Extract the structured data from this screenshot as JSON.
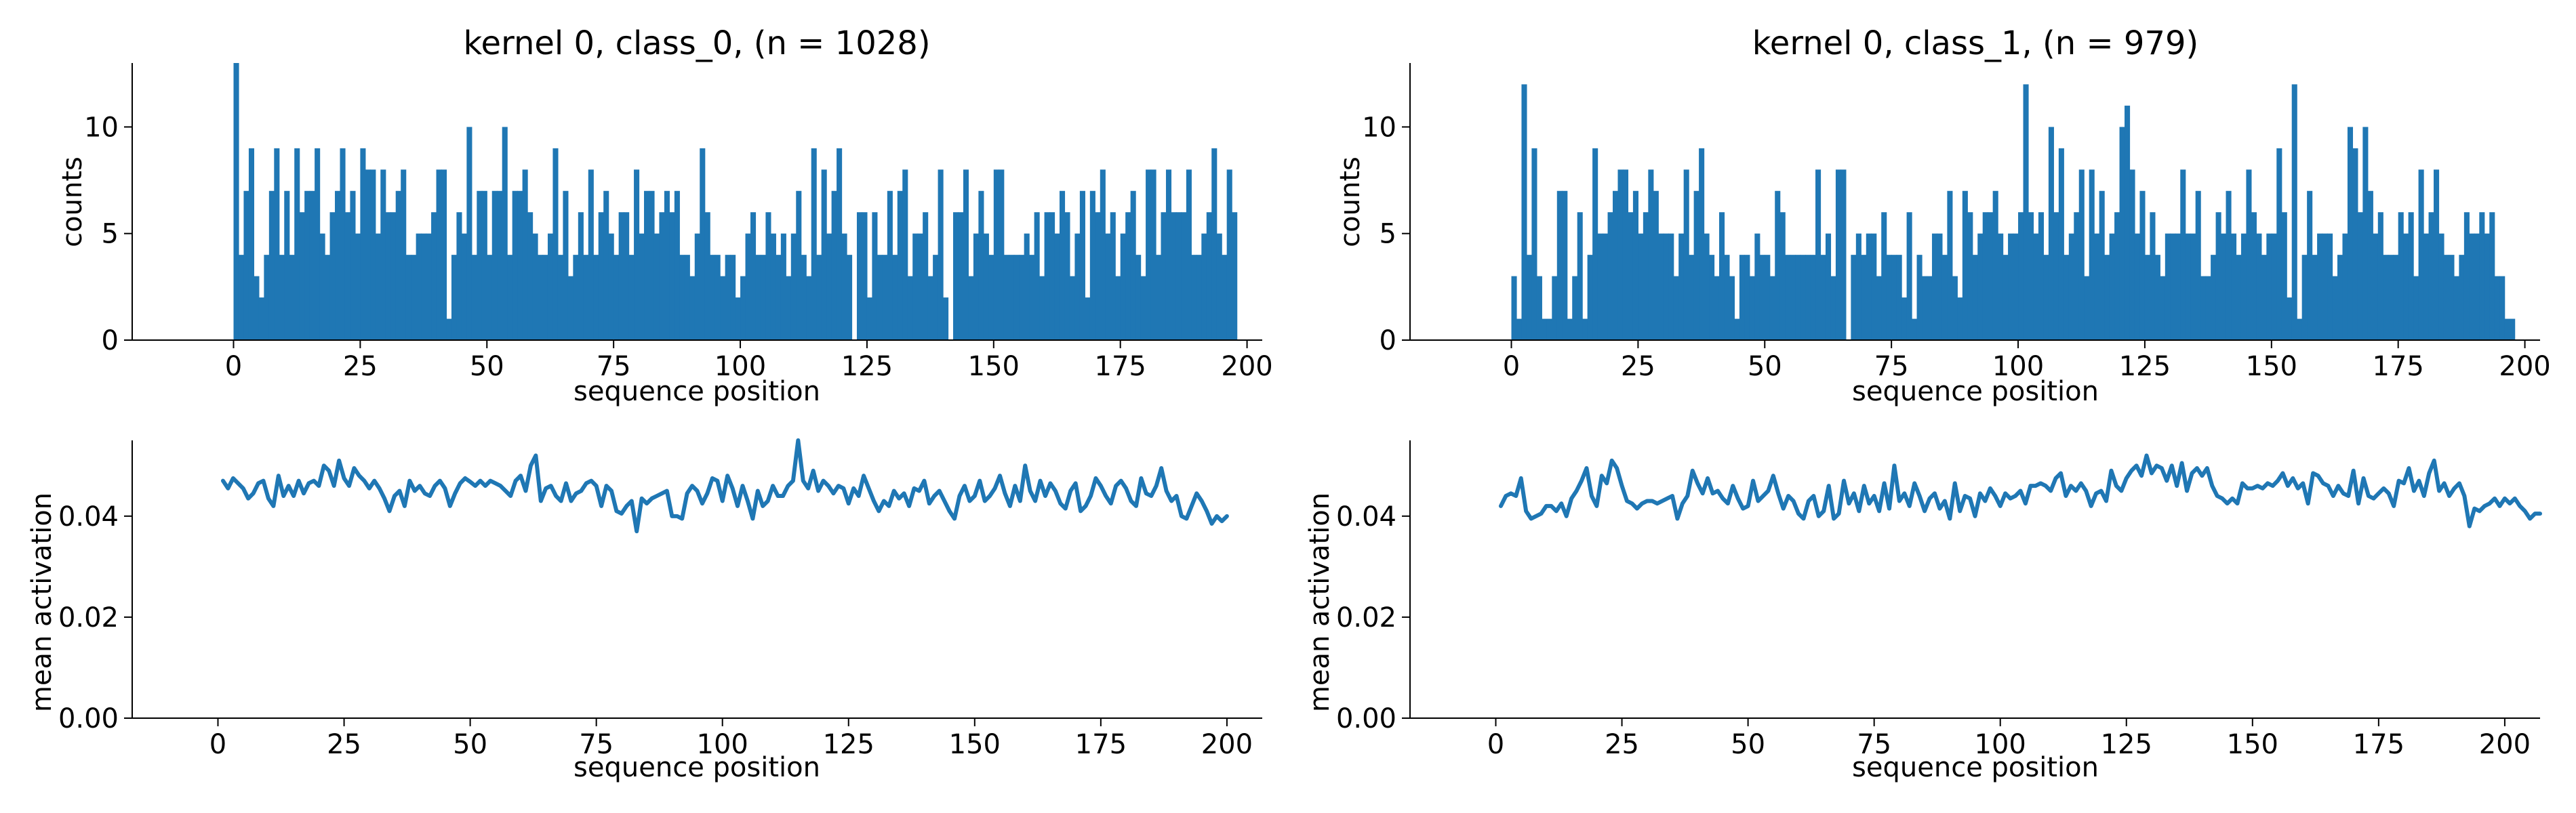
{
  "chart_data": [
    {
      "type": "bar",
      "title": "kernel 0, class_0, (n = 1028)",
      "xlabel": "sequence position",
      "ylabel": "counts",
      "xlim": [
        -20,
        203
      ],
      "ylim": [
        0,
        13
      ],
      "xticks": [
        "0",
        "25",
        "50",
        "75",
        "100",
        "125",
        "150",
        "175",
        "200"
      ],
      "yticks": [
        "0",
        "5",
        "10"
      ],
      "color": "#1f77b4",
      "x_start": 0,
      "values": [
        13,
        4,
        7,
        9,
        3,
        2,
        4,
        7,
        9,
        4,
        7,
        4,
        9,
        6,
        7,
        7,
        9,
        5,
        4,
        6,
        7,
        9,
        6,
        7,
        5,
        9,
        8,
        8,
        5,
        8,
        6,
        6,
        7,
        8,
        4,
        4,
        5,
        5,
        5,
        6,
        8,
        8,
        1,
        4,
        6,
        5,
        10,
        4,
        7,
        7,
        4,
        7,
        7,
        10,
        4,
        7,
        7,
        8,
        6,
        5,
        4,
        4,
        5,
        9,
        4,
        7,
        3,
        4,
        6,
        4,
        8,
        4,
        6,
        7,
        5,
        4,
        6,
        6,
        4,
        8,
        5,
        7,
        7,
        5,
        6,
        7,
        6,
        7,
        4,
        4,
        3,
        5,
        9,
        6,
        4,
        4,
        3,
        4,
        4,
        2,
        3,
        5,
        6,
        4,
        4,
        6,
        5,
        4,
        5,
        3,
        5,
        7,
        4,
        3,
        9,
        4,
        8,
        5,
        7,
        9,
        5,
        4,
        0,
        6,
        6,
        2,
        6,
        4,
        4,
        7,
        4,
        7,
        8,
        3,
        5,
        5,
        6,
        3,
        4,
        8,
        2,
        0,
        6,
        6,
        8,
        3,
        5,
        7,
        5,
        4,
        8,
        8,
        4,
        4,
        4,
        4,
        5,
        4,
        6,
        3,
        6,
        6,
        5,
        7,
        6,
        3,
        5,
        7,
        2,
        7,
        6,
        8,
        5,
        6,
        3,
        5,
        6,
        7,
        4,
        3,
        8,
        8,
        4,
        6,
        8,
        6,
        6,
        6,
        8,
        4,
        4,
        5,
        6,
        9,
        5,
        4,
        8,
        6
      ]
    },
    {
      "type": "line",
      "title": "",
      "xlabel": "sequence position",
      "ylabel": "mean activation",
      "xlim": [
        -17,
        207
      ],
      "ylim": [
        0,
        0.055
      ],
      "xticks": [
        "0",
        "25",
        "50",
        "75",
        "100",
        "125",
        "150",
        "175",
        "200"
      ],
      "yticks": [
        "0.00",
        "0.02",
        "0.04"
      ],
      "color": "#1f77b4",
      "x_start": 1,
      "values": [
        0.047,
        0.0455,
        0.0475,
        0.0465,
        0.0455,
        0.0435,
        0.0445,
        0.0465,
        0.047,
        0.0435,
        0.042,
        0.048,
        0.044,
        0.046,
        0.044,
        0.047,
        0.0445,
        0.0465,
        0.047,
        0.046,
        0.05,
        0.049,
        0.046,
        0.051,
        0.0475,
        0.046,
        0.0495,
        0.048,
        0.047,
        0.0455,
        0.047,
        0.0455,
        0.0435,
        0.041,
        0.044,
        0.045,
        0.042,
        0.047,
        0.045,
        0.046,
        0.0445,
        0.044,
        0.046,
        0.047,
        0.0455,
        0.042,
        0.0445,
        0.0465,
        0.0475,
        0.0468,
        0.046,
        0.047,
        0.046,
        0.047,
        0.0465,
        0.046,
        0.045,
        0.044,
        0.047,
        0.048,
        0.045,
        0.05,
        0.052,
        0.043,
        0.0455,
        0.046,
        0.044,
        0.043,
        0.0465,
        0.043,
        0.0445,
        0.045,
        0.0465,
        0.047,
        0.046,
        0.042,
        0.046,
        0.045,
        0.041,
        0.0405,
        0.042,
        0.043,
        0.037,
        0.0435,
        0.0425,
        0.0435,
        0.044,
        0.0445,
        0.045,
        0.04,
        0.04,
        0.0395,
        0.0445,
        0.046,
        0.045,
        0.0425,
        0.0445,
        0.0475,
        0.047,
        0.043,
        0.048,
        0.0455,
        0.042,
        0.046,
        0.043,
        0.0395,
        0.045,
        0.042,
        0.043,
        0.046,
        0.044,
        0.044,
        0.046,
        0.047,
        0.055,
        0.047,
        0.0455,
        0.049,
        0.045,
        0.047,
        0.046,
        0.0445,
        0.046,
        0.0455,
        0.0425,
        0.0455,
        0.044,
        0.048,
        0.0455,
        0.043,
        0.041,
        0.043,
        0.042,
        0.045,
        0.0435,
        0.0445,
        0.042,
        0.0455,
        0.045,
        0.047,
        0.0425,
        0.044,
        0.045,
        0.043,
        0.041,
        0.0395,
        0.044,
        0.046,
        0.043,
        0.044,
        0.047,
        0.043,
        0.044,
        0.0455,
        0.048,
        0.0445,
        0.042,
        0.046,
        0.043,
        0.05,
        0.045,
        0.043,
        0.047,
        0.044,
        0.0465,
        0.045,
        0.0425,
        0.0415,
        0.045,
        0.0465,
        0.041,
        0.042,
        0.044,
        0.0475,
        0.046,
        0.044,
        0.0425,
        0.046,
        0.047,
        0.0455,
        0.043,
        0.042,
        0.0475,
        0.0445,
        0.044,
        0.046,
        0.0495,
        0.045,
        0.043,
        0.044,
        0.04,
        0.0395,
        0.042,
        0.0445,
        0.043,
        0.041,
        0.0385,
        0.04,
        0.039,
        0.04
      ]
    },
    {
      "type": "bar",
      "title": "kernel 0, class_1, (n = 979)",
      "xlabel": "sequence position",
      "ylabel": "counts",
      "xlim": [
        -20,
        203
      ],
      "ylim": [
        0,
        13
      ],
      "xticks": [
        "0",
        "25",
        "50",
        "75",
        "100",
        "125",
        "150",
        "175",
        "200"
      ],
      "yticks": [
        "0",
        "5",
        "10"
      ],
      "color": "#1f77b4",
      "x_start": 0,
      "values": [
        3,
        1,
        12,
        4,
        9,
        3,
        1,
        1,
        3,
        7,
        7,
        1,
        3,
        6,
        1,
        4,
        9,
        5,
        5,
        6,
        7,
        8,
        8,
        6,
        7,
        5,
        6,
        8,
        7,
        5,
        5,
        5,
        3,
        5,
        8,
        4,
        7,
        9,
        5,
        4,
        3,
        6,
        4,
        3,
        1,
        4,
        4,
        3,
        5,
        4,
        4,
        3,
        7,
        6,
        4,
        4,
        4,
        4,
        4,
        4,
        8,
        4,
        5,
        3,
        8,
        8,
        0,
        4,
        5,
        4,
        5,
        5,
        3,
        6,
        4,
        4,
        4,
        2,
        6,
        1,
        4,
        3,
        3,
        5,
        5,
        4,
        7,
        3,
        2,
        7,
        6,
        4,
        5,
        6,
        6,
        7,
        5,
        4,
        5,
        5,
        6,
        12,
        6,
        5,
        6,
        4,
        10,
        6,
        9,
        4,
        5,
        6,
        8,
        3,
        8,
        5,
        7,
        4,
        5,
        6,
        10,
        11,
        8,
        5,
        7,
        4,
        6,
        4,
        3,
        5,
        5,
        5,
        8,
        5,
        5,
        7,
        3,
        3,
        4,
        6,
        5,
        7,
        5,
        4,
        5,
        8,
        6,
        5,
        4,
        5,
        5,
        9,
        6,
        2,
        12,
        1,
        4,
        7,
        4,
        5,
        5,
        5,
        3,
        4,
        5,
        10,
        9,
        6,
        10,
        7,
        5,
        6,
        4,
        4,
        4,
        6,
        5,
        6,
        3,
        8,
        5,
        6,
        8,
        5,
        4,
        4,
        3,
        4,
        6,
        5,
        5,
        6,
        5,
        6,
        3,
        3,
        1,
        1
      ]
    },
    {
      "type": "line",
      "title": "",
      "xlabel": "sequence position",
      "ylabel": "mean activation",
      "xlim": [
        -17,
        207
      ],
      "ylim": [
        0,
        0.055
      ],
      "xticks": [
        "0",
        "25",
        "50",
        "75",
        "100",
        "125",
        "150",
        "175",
        "200"
      ],
      "yticks": [
        "0.00",
        "0.02",
        "0.04"
      ],
      "color": "#1f77b4",
      "x_start": 1,
      "values": [
        0.042,
        0.044,
        0.0445,
        0.044,
        0.0475,
        0.041,
        0.0395,
        0.04,
        0.0405,
        0.042,
        0.042,
        0.041,
        0.0425,
        0.04,
        0.0435,
        0.045,
        0.047,
        0.0495,
        0.044,
        0.042,
        0.048,
        0.0465,
        0.051,
        0.0495,
        0.046,
        0.043,
        0.0425,
        0.0415,
        0.0425,
        0.043,
        0.043,
        0.0425,
        0.043,
        0.0435,
        0.044,
        0.0395,
        0.0425,
        0.044,
        0.049,
        0.0465,
        0.0445,
        0.0475,
        0.0445,
        0.045,
        0.0435,
        0.0425,
        0.046,
        0.0435,
        0.0415,
        0.042,
        0.047,
        0.043,
        0.044,
        0.045,
        0.048,
        0.0445,
        0.0415,
        0.044,
        0.043,
        0.0405,
        0.0395,
        0.043,
        0.044,
        0.04,
        0.041,
        0.046,
        0.0395,
        0.0405,
        0.047,
        0.0425,
        0.0445,
        0.041,
        0.046,
        0.0425,
        0.044,
        0.041,
        0.0465,
        0.0415,
        0.05,
        0.043,
        0.0445,
        0.042,
        0.0465,
        0.044,
        0.041,
        0.0435,
        0.0445,
        0.0415,
        0.043,
        0.0395,
        0.0465,
        0.041,
        0.044,
        0.0435,
        0.04,
        0.0445,
        0.043,
        0.0455,
        0.044,
        0.042,
        0.0445,
        0.0435,
        0.044,
        0.045,
        0.0425,
        0.046,
        0.046,
        0.0465,
        0.046,
        0.045,
        0.0475,
        0.0485,
        0.044,
        0.046,
        0.045,
        0.0465,
        0.045,
        0.042,
        0.0445,
        0.045,
        0.043,
        0.049,
        0.046,
        0.045,
        0.0475,
        0.049,
        0.05,
        0.048,
        0.052,
        0.0485,
        0.05,
        0.0495,
        0.047,
        0.05,
        0.046,
        0.0505,
        0.045,
        0.0485,
        0.0495,
        0.048,
        0.0495,
        0.046,
        0.044,
        0.0435,
        0.0425,
        0.0435,
        0.0425,
        0.0465,
        0.0455,
        0.0455,
        0.046,
        0.0455,
        0.0465,
        0.046,
        0.047,
        0.0485,
        0.046,
        0.0475,
        0.0455,
        0.0465,
        0.0425,
        0.0485,
        0.048,
        0.0465,
        0.046,
        0.044,
        0.046,
        0.0445,
        0.044,
        0.049,
        0.0425,
        0.0475,
        0.044,
        0.0435,
        0.0445,
        0.0455,
        0.0445,
        0.042,
        0.047,
        0.0465,
        0.0495,
        0.045,
        0.047,
        0.044,
        0.0485,
        0.051,
        0.045,
        0.0465,
        0.044,
        0.0455,
        0.0465,
        0.044,
        0.038,
        0.0415,
        0.041,
        0.042,
        0.0425,
        0.0435,
        0.042,
        0.0435,
        0.0425,
        0.0435,
        0.042,
        0.041,
        0.0395,
        0.0405,
        0.0405
      ]
    }
  ]
}
